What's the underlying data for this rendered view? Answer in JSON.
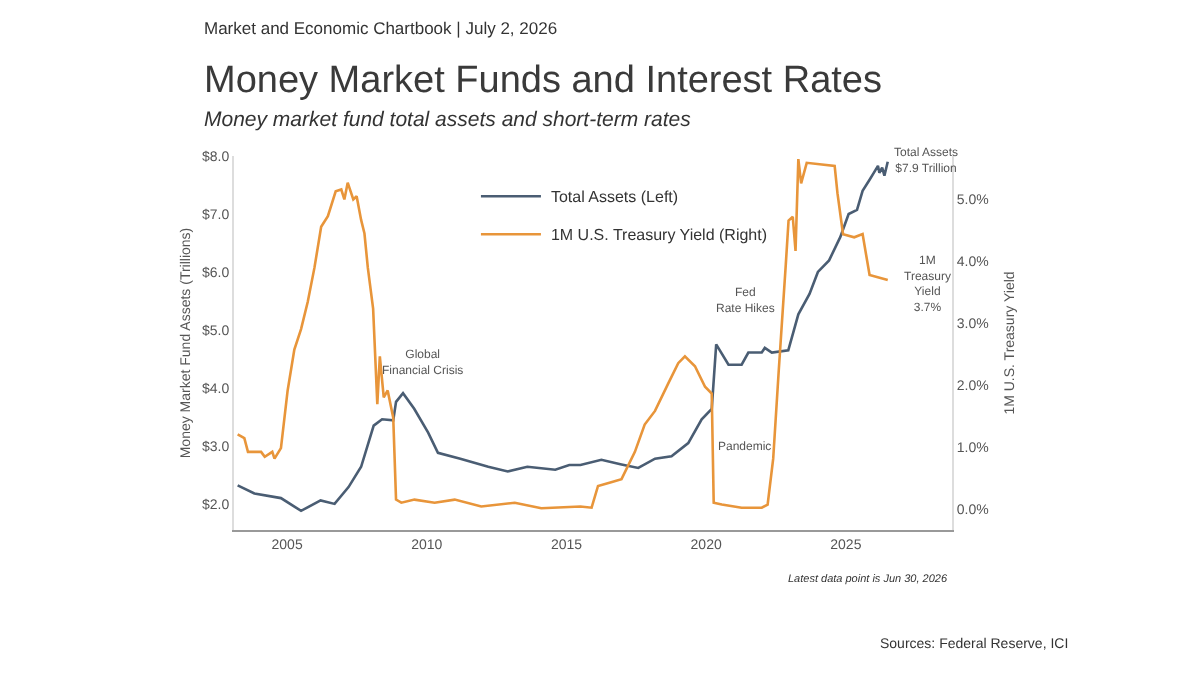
{
  "chart_data": {
    "type": "line",
    "title": "Money Market Funds and Interest Rates",
    "subtitle": "Money market fund total assets and short-term rates",
    "ylabel": "Money Market Fund Assets (Trillions)",
    "y2label": "1M U.S. Treasury Yield",
    "xlim": [
      2003.1,
      2028.8
    ],
    "xticks": [
      2005,
      2010,
      2015,
      2020,
      2025
    ],
    "ylim": [
      1.55,
      8.0
    ],
    "yticks": [
      {
        "value": 2,
        "label": "$2.0"
      },
      {
        "value": 3,
        "label": "$3.0"
      },
      {
        "value": 4,
        "label": "$4.0"
      },
      {
        "value": 5,
        "label": "$5.0"
      },
      {
        "value": 6,
        "label": "$6.0"
      },
      {
        "value": 7,
        "label": "$7.0"
      },
      {
        "value": 8,
        "label": "$8.0"
      }
    ],
    "y2lim": [
      -0.33,
      5.7
    ],
    "y2ticks": [
      {
        "value": 0,
        "label": "0.0%"
      },
      {
        "value": 1,
        "label": "1.0%"
      },
      {
        "value": 2,
        "label": "2.0%"
      },
      {
        "value": 3,
        "label": "3.0%"
      },
      {
        "value": 4,
        "label": "4.0%"
      },
      {
        "value": 5,
        "label": "5.0%"
      }
    ],
    "legend": "top",
    "marker": "none",
    "line_style": "solid",
    "series": [
      {
        "name": "Total Assets (Left)",
        "color": "#4a5d73",
        "x": [
          2003.23,
          2003.83,
          2004.78,
          2005.5,
          2006.2,
          2006.7,
          2007.2,
          2007.65,
          2008.1,
          2008.4,
          2008.8,
          2008.9,
          2009.15,
          2009.55,
          2010.05,
          2010.4,
          2011.2,
          2012.2,
          2012.9,
          2013.6,
          2014.6,
          2015.1,
          2015.5,
          2016.25,
          2016.97,
          2017.57,
          2018.17,
          2018.76,
          2019.36,
          2019.84,
          2020.2,
          2020.36,
          2020.8,
          2021.27,
          2021.51,
          2021.99,
          2022.1,
          2022.35,
          2022.94,
          2023.3,
          2023.7,
          2024.0,
          2024.4,
          2024.8,
          2025.1,
          2025.4,
          2025.6,
          2025.85,
          2026.0,
          2026.15,
          2026.2,
          2026.3,
          2026.38,
          2026.5
        ],
        "values": [
          2.32,
          2.18,
          2.1,
          1.88,
          2.06,
          2.0,
          2.29,
          2.64,
          3.35,
          3.46,
          3.44,
          3.76,
          3.91,
          3.64,
          3.23,
          2.88,
          2.78,
          2.64,
          2.56,
          2.64,
          2.59,
          2.67,
          2.67,
          2.76,
          2.68,
          2.62,
          2.78,
          2.82,
          3.05,
          3.46,
          3.64,
          4.75,
          4.4,
          4.4,
          4.61,
          4.61,
          4.69,
          4.61,
          4.65,
          5.27,
          5.62,
          6.0,
          6.2,
          6.6,
          7.0,
          7.07,
          7.4,
          7.59,
          7.71,
          7.83,
          7.71,
          7.8,
          7.66,
          7.9
        ]
      },
      {
        "name": "1M U.S. Treasury Yield (Right)",
        "color": "#e8953a",
        "axis": "y2",
        "x": [
          2003.23,
          2003.47,
          2003.6,
          2004.07,
          2004.2,
          2004.47,
          2004.55,
          2004.78,
          2005.02,
          2005.26,
          2005.5,
          2005.74,
          2005.98,
          2006.22,
          2006.46,
          2006.74,
          2006.94,
          2007.05,
          2007.17,
          2007.37,
          2007.49,
          2007.65,
          2007.77,
          2007.89,
          2008.08,
          2008.23,
          2008.32,
          2008.46,
          2008.6,
          2008.8,
          2008.9,
          2009.09,
          2009.56,
          2010.28,
          2011.0,
          2011.95,
          2013.15,
          2014.1,
          2015.5,
          2015.9,
          2016.13,
          2016.6,
          2016.97,
          2017.45,
          2017.8,
          2018.17,
          2018.64,
          2019.0,
          2019.24,
          2019.6,
          2019.96,
          2020.2,
          2020.27,
          2020.56,
          2021.27,
          2021.99,
          2022.2,
          2022.4,
          2022.6,
          2022.85,
          2022.95,
          2023.1,
          2023.2,
          2023.3,
          2023.4,
          2023.6,
          2024.6,
          2024.7,
          2024.9,
          2025.3,
          2025.6,
          2025.85,
          2026.5
        ],
        "values": [
          1.21,
          1.15,
          0.93,
          0.93,
          0.85,
          0.93,
          0.82,
          0.99,
          1.92,
          2.58,
          2.91,
          3.35,
          3.9,
          4.56,
          4.73,
          5.13,
          5.16,
          5.0,
          5.27,
          5.0,
          5.05,
          4.67,
          4.45,
          3.9,
          3.24,
          1.7,
          2.47,
          1.81,
          1.92,
          1.48,
          0.16,
          0.11,
          0.16,
          0.11,
          0.16,
          0.05,
          0.11,
          0.02,
          0.05,
          0.03,
          0.38,
          0.44,
          0.49,
          0.93,
          1.37,
          1.59,
          2.03,
          2.36,
          2.47,
          2.31,
          1.98,
          1.87,
          0.11,
          0.08,
          0.03,
          0.03,
          0.08,
          0.82,
          2.25,
          3.95,
          4.66,
          4.72,
          4.17,
          5.65,
          5.26,
          5.59,
          5.54,
          5.1,
          4.44,
          4.39,
          4.44,
          3.78,
          3.7
        ]
      }
    ],
    "annotations": [
      "Market and Economic Chartbook | July 2, 2026",
      "Global\nFinancial Crisis",
      "Pandemic",
      "Fed\nRate Hikes",
      "Total Assets\n$7.9 Trillion",
      "1M\nTreasury\nYield\n3.7%",
      "Latest data point is Jun 30, 2026",
      "Sources: Federal Reserve, ICI"
    ]
  }
}
